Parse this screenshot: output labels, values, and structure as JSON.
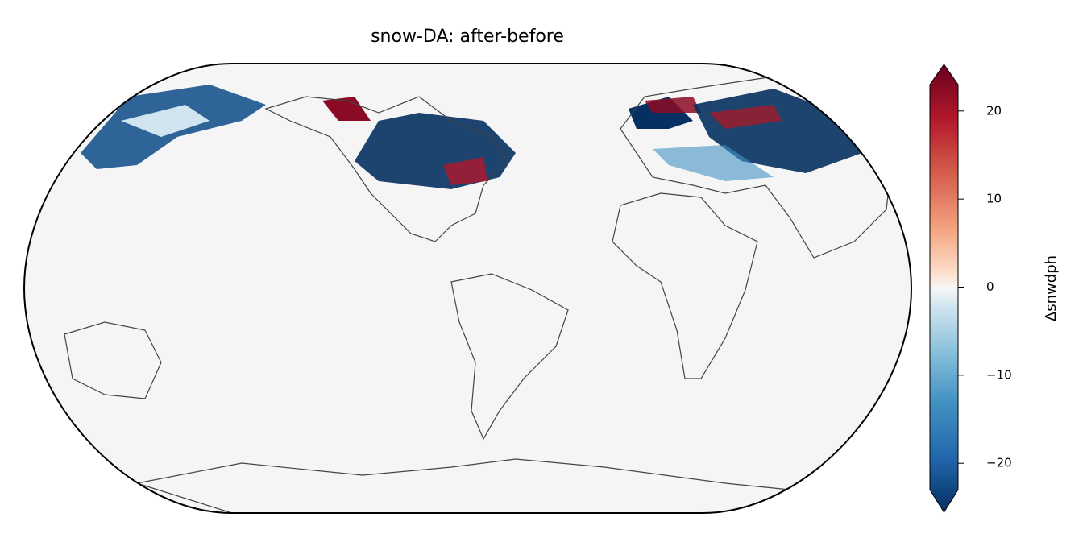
{
  "chart_data": {
    "type": "map",
    "title": "snow-DA: after-before",
    "colorbar": {
      "label": "Δsnwdph",
      "clim": [
        -23,
        23
      ],
      "ticks": [
        {
          "value": -20,
          "label": "−20"
        },
        {
          "value": -10,
          "label": "−10"
        },
        0,
        10,
        20
      ]
    }
  }
}
